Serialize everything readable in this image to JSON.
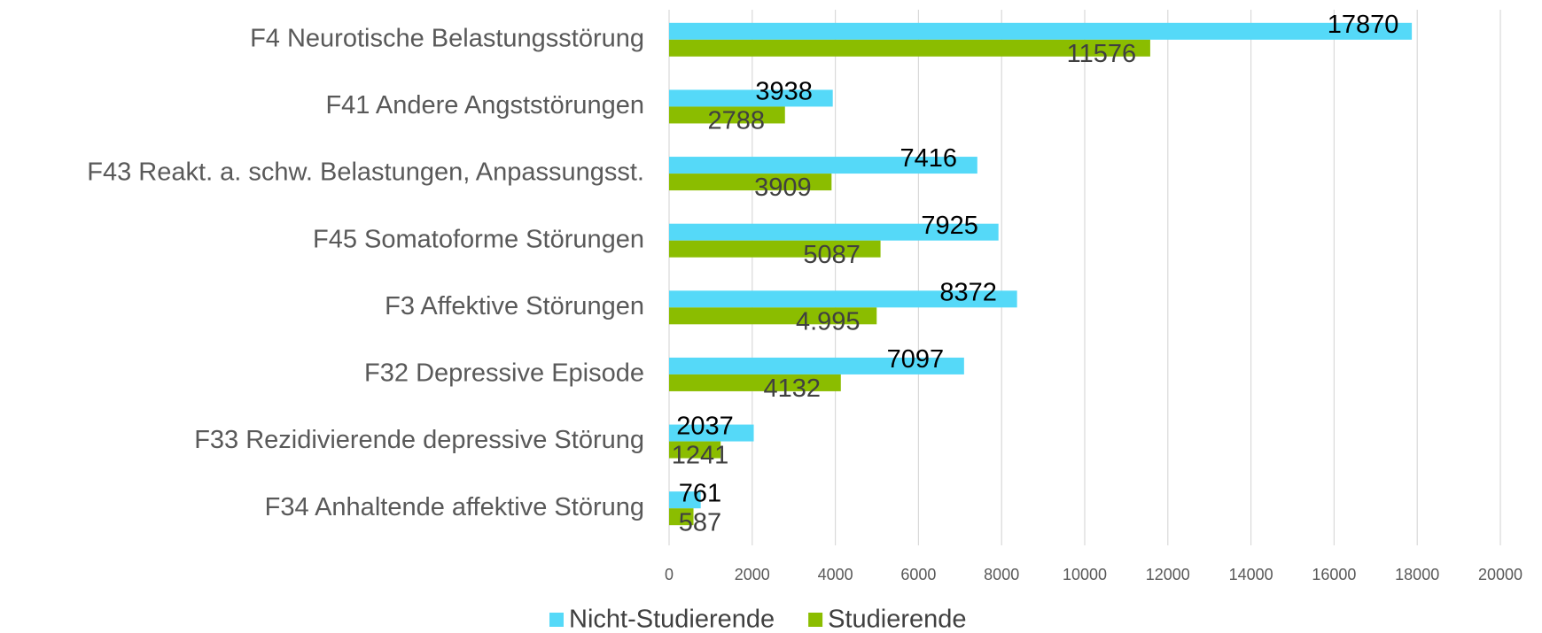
{
  "chart_data": {
    "type": "hbar",
    "categories": [
      "F4 Neurotische Belastungsstörung",
      "F41 Andere Angststörungen",
      "F43 Reakt. a. schw. Belastungen, Anpassungsst.",
      "F45 Somatoforme Störungen",
      "F3 Affektive Störungen",
      "F32 Depressive Episode",
      "F33 Rezidivierende depressive Störung",
      "F34 Anhaltende affektive Störung"
    ],
    "series": [
      {
        "name": "Nicht-Studierende",
        "color": "#55d9f8",
        "values": [
          17870,
          3938,
          7416,
          7925,
          8372,
          7097,
          2037,
          761
        ]
      },
      {
        "name": "Studierende",
        "color": "#8bbd00",
        "values": [
          11576,
          2788,
          3909,
          5087,
          4995,
          4132,
          1241,
          587
        ],
        "value_labels": [
          "11576",
          "2788",
          "3909",
          "5087",
          "4.995",
          "4132",
          "1241",
          "587"
        ]
      }
    ],
    "xlim": [
      0,
      20000
    ],
    "xticks": [
      0,
      2000,
      4000,
      6000,
      8000,
      10000,
      12000,
      14000,
      16000,
      18000,
      20000
    ],
    "grid": true,
    "legend": "bottom"
  }
}
